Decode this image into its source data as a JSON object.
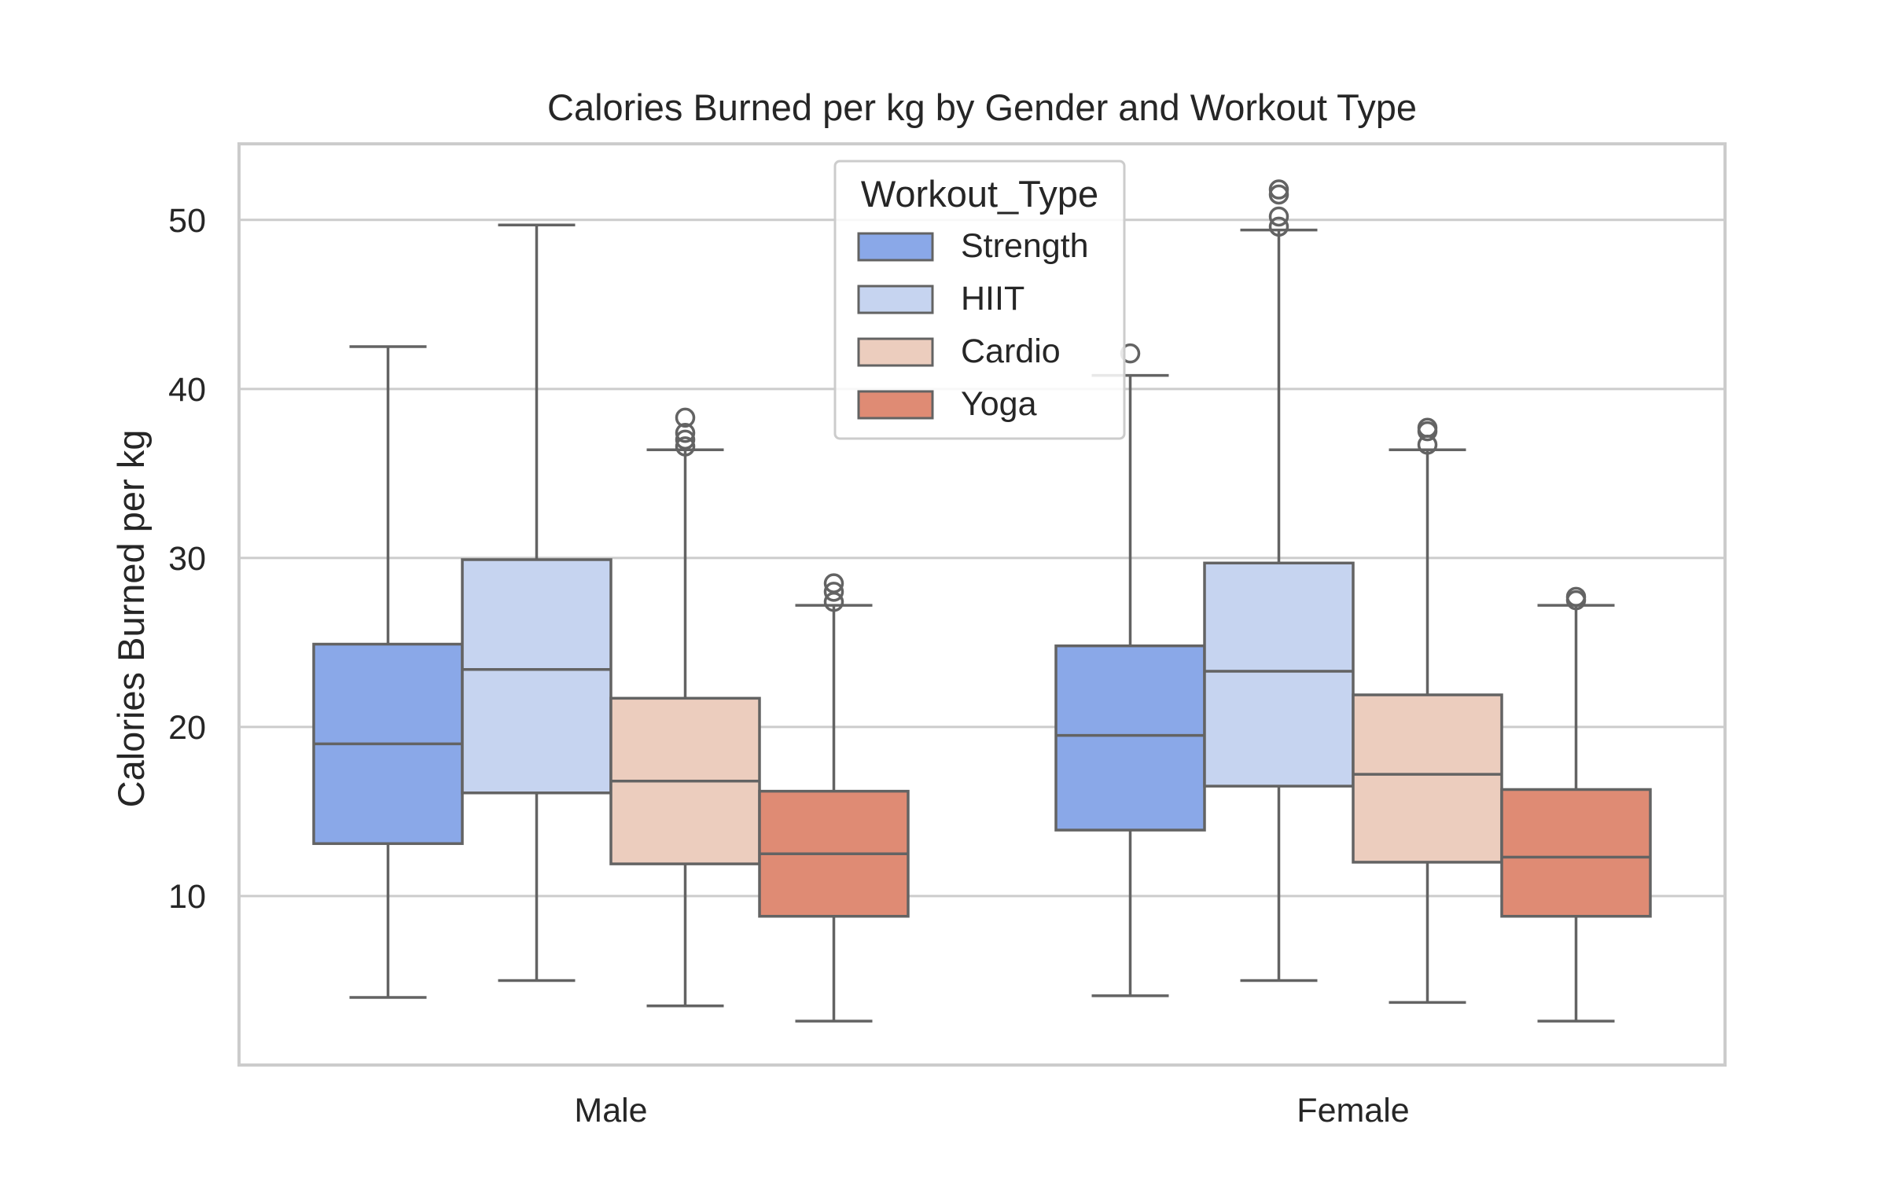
{
  "chart_data": {
    "type": "box",
    "title": "Calories Burned per kg by Gender and Workout Type",
    "xlabel": "",
    "ylabel": "Calories Burned per kg",
    "ylim": [
      0,
      54.5
    ],
    "yticks": [
      10,
      20,
      30,
      40,
      50
    ],
    "categories": [
      "Male",
      "Female"
    ],
    "grid": true,
    "legend": {
      "title": "Workout_Type",
      "placement": "top-center"
    },
    "colors": {
      "Strength": "#8aa8e8",
      "HIIT": "#c6d4f0",
      "Cardio": "#eccdbe",
      "Yoga": "#df8b74",
      "line": "#636363",
      "grid": "#cccccc",
      "frame": "#cccccc"
    },
    "series": [
      {
        "name": "Strength",
        "boxes": [
          {
            "category": "Male",
            "whisker_low": 4.0,
            "q1": 13.1,
            "median": 19.0,
            "q3": 24.9,
            "whisker_high": 42.5,
            "outliers": []
          },
          {
            "category": "Female",
            "whisker_low": 4.1,
            "q1": 13.9,
            "median": 19.5,
            "q3": 24.8,
            "whisker_high": 40.8,
            "outliers": [
              42.1
            ]
          }
        ]
      },
      {
        "name": "HIIT",
        "boxes": [
          {
            "category": "Male",
            "whisker_low": 5.0,
            "q1": 16.1,
            "median": 23.4,
            "q3": 29.9,
            "whisker_high": 49.7,
            "outliers": []
          },
          {
            "category": "Female",
            "whisker_low": 5.0,
            "q1": 16.5,
            "median": 23.3,
            "q3": 29.7,
            "whisker_high": 49.4,
            "outliers": [
              49.6,
              50.2,
              51.5,
              51.8
            ]
          }
        ]
      },
      {
        "name": "Cardio",
        "boxes": [
          {
            "category": "Male",
            "whisker_low": 3.5,
            "q1": 11.9,
            "median": 16.8,
            "q3": 21.7,
            "whisker_high": 36.4,
            "outliers": [
              36.6,
              37.0,
              37.4,
              38.3
            ]
          },
          {
            "category": "Female",
            "whisker_low": 3.7,
            "q1": 12.0,
            "median": 17.2,
            "q3": 21.9,
            "whisker_high": 36.4,
            "outliers": [
              36.7,
              37.5,
              37.7
            ]
          }
        ]
      },
      {
        "name": "Yoga",
        "boxes": [
          {
            "category": "Male",
            "whisker_low": 2.6,
            "q1": 8.8,
            "median": 12.5,
            "q3": 16.2,
            "whisker_high": 27.2,
            "outliers": [
              27.4,
              28.0,
              28.5
            ]
          },
          {
            "category": "Female",
            "whisker_low": 2.6,
            "q1": 8.8,
            "median": 12.3,
            "q3": 16.3,
            "whisker_high": 27.2,
            "outliers": [
              27.5,
              27.7
            ]
          }
        ]
      }
    ]
  }
}
